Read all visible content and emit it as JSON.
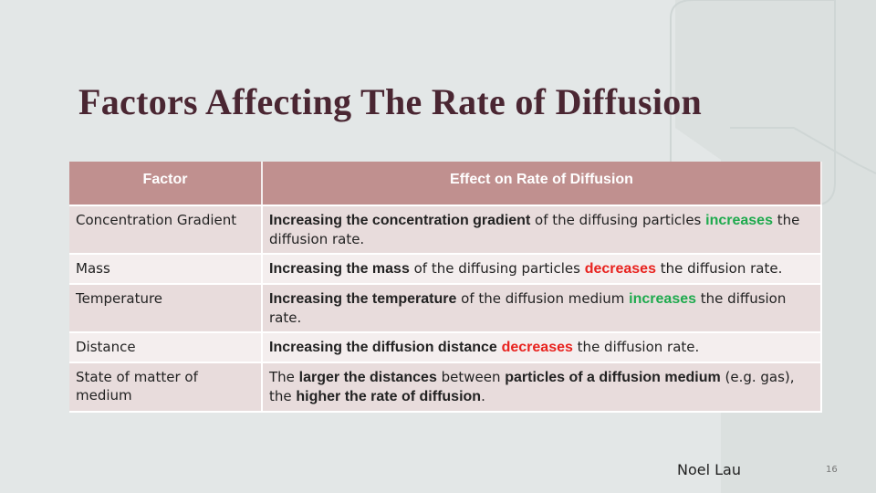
{
  "header": {
    "title": "Factors Affecting The Rate of Diffusion"
  },
  "table": {
    "columns": [
      "Factor",
      "Effect on Rate of Diffusion"
    ],
    "rows": [
      {
        "factor": "Concentration Gradient",
        "effect": [
          {
            "text": "Increasing the concentration gradient",
            "bold": true
          },
          {
            "text": " of the diffusing particles "
          },
          {
            "text": "increases",
            "bold": true,
            "color": "#1faa4e"
          },
          {
            "text": " the diffusion rate."
          }
        ]
      },
      {
        "factor": "Mass",
        "effect": [
          {
            "text": "Increasing the mass",
            "bold": true
          },
          {
            "text": " of the diffusing particles "
          },
          {
            "text": "decreases",
            "bold": true,
            "color": "#e8231f"
          },
          {
            "text": " the diffusion rate."
          }
        ]
      },
      {
        "factor": "Temperature",
        "effect": [
          {
            "text": "Increasing the temperature",
            "bold": true
          },
          {
            "text": " of the diffusion medium "
          },
          {
            "text": "increases",
            "bold": true,
            "color": "#1faa4e"
          },
          {
            "text": " the diffusion rate."
          }
        ]
      },
      {
        "factor": "Distance",
        "effect": [
          {
            "text": "Increasing the diffusion distance",
            "bold": true
          },
          {
            "text": " "
          },
          {
            "text": "decreases",
            "bold": true,
            "color": "#e8231f"
          },
          {
            "text": " the diffusion rate."
          }
        ]
      },
      {
        "factor": "State of matter of medium",
        "effect": [
          {
            "text": "The "
          },
          {
            "text": "larger the distances",
            "bold": true
          },
          {
            "text": " between "
          },
          {
            "text": "particles of a diffusion medium",
            "bold": true
          },
          {
            "text": " (e.g. gas), the "
          },
          {
            "text": "higher the rate of diffusion",
            "bold": true
          },
          {
            "text": "."
          }
        ]
      }
    ]
  },
  "footer": {
    "author": "Noel Lau",
    "page": "16"
  }
}
